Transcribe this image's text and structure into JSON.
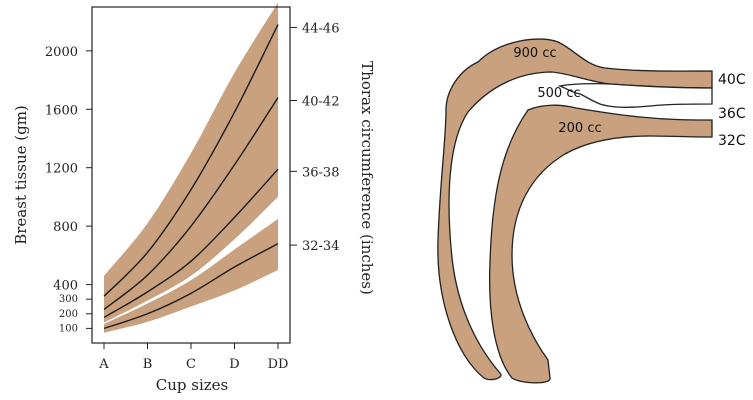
{
  "colors": {
    "band": "#c9a17e",
    "curve": "#1b1b1b",
    "gap": "#ffffff",
    "axis": "#222222"
  },
  "chart_data": {
    "type": "line",
    "xlabel": "Cup sizes",
    "ylabel": "Breast tissue (gm)",
    "y2label": "Thorax circumference (inches)",
    "categories": [
      "A",
      "B",
      "C",
      "D",
      "DD"
    ],
    "yticks": [
      100,
      200,
      300,
      400,
      800,
      1200,
      1600,
      2000
    ],
    "yticks_small": [
      100,
      200,
      300
    ],
    "ylim": [
      0,
      2300
    ],
    "right_ticks": [
      {
        "label": "32-34",
        "y": 670
      },
      {
        "label": "36-38",
        "y": 1175
      },
      {
        "label": "40-42",
        "y": 1660
      },
      {
        "label": "44-46",
        "y": 2160
      }
    ],
    "series": [
      {
        "values": [
          100,
          200,
          340,
          520,
          680
        ]
      },
      {
        "values": [
          175,
          350,
          560,
          860,
          1190
        ]
      },
      {
        "values": [
          230,
          465,
          800,
          1220,
          1680
        ]
      },
      {
        "values": [
          320,
          620,
          1050,
          1580,
          2180
        ]
      }
    ],
    "bands": [
      {
        "low": [
          70,
          145,
          250,
          360,
          500
        ],
        "high": [
          130,
          270,
          430,
          640,
          850
        ]
      },
      {
        "low": [
          140,
          290,
          460,
          710,
          1000
        ],
        "high": [
          200,
          420,
          700,
          1040,
          1440
        ]
      },
      {
        "low": [
          195,
          410,
          690,
          1030,
          1430
        ],
        "high": [
          280,
          560,
          950,
          1410,
          1890
        ]
      },
      {
        "low": [
          275,
          540,
          900,
          1380,
          1870
        ],
        "high": [
          460,
          820,
          1300,
          1850,
          2330
        ]
      }
    ]
  },
  "diagram": {
    "shape_labels": [
      "900 cc",
      "500 cc",
      "200 cc"
    ],
    "band_labels": [
      "40C",
      "36C",
      "32C"
    ]
  }
}
